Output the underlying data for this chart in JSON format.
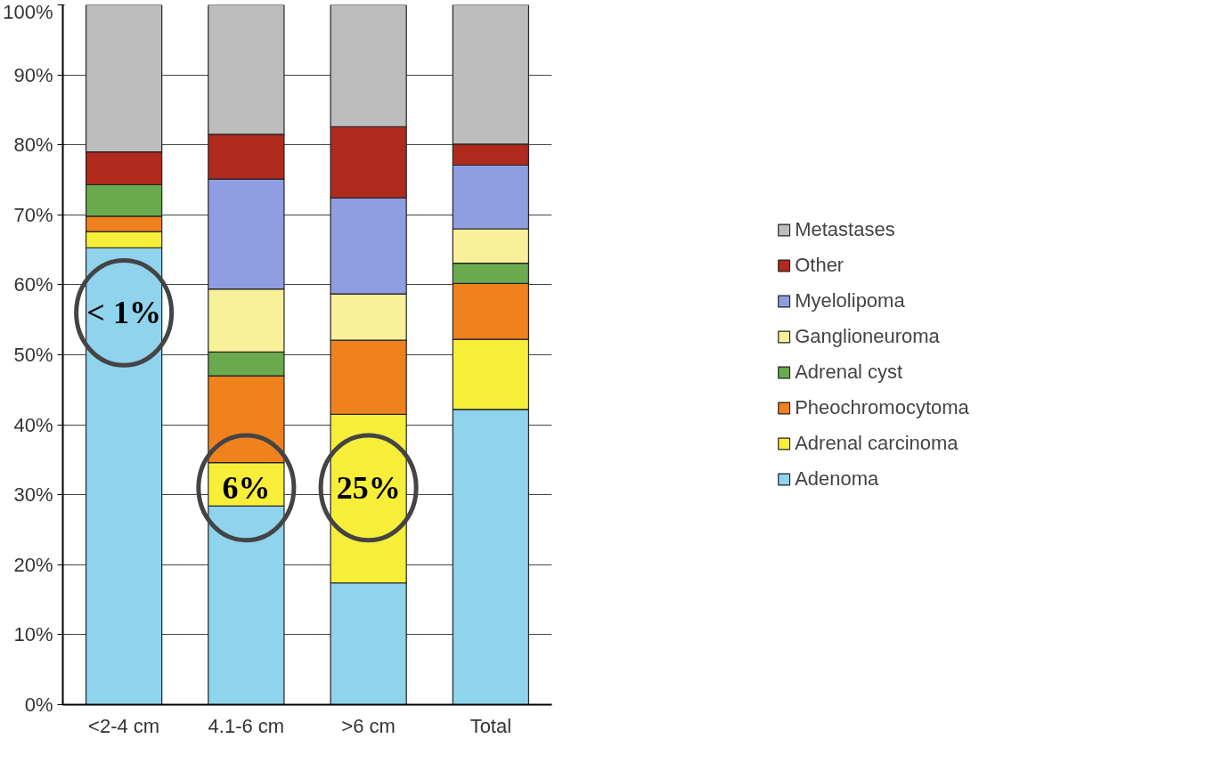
{
  "chart_data": {
    "type": "bar",
    "stacked": true,
    "categories": [
      "<2-4 cm",
      "4.1-6 cm",
      ">6 cm",
      "Total"
    ],
    "series": [
      {
        "name": "Adenoma",
        "color": "#8fd3ec",
        "values": [
          65.3,
          28.4,
          17.4,
          42.2
        ]
      },
      {
        "name": "Adrenal carcinoma",
        "color": "#f7ee3a",
        "values": [
          2.3,
          6.2,
          24.1,
          10.0
        ]
      },
      {
        "name": "Pheochromocytoma",
        "color": "#f0821e",
        "values": [
          2.2,
          12.4,
          10.6,
          8.0
        ]
      },
      {
        "name": "Adrenal cyst",
        "color": "#6aaa4e",
        "values": [
          4.5,
          3.4,
          0,
          2.9
        ]
      },
      {
        "name": "Ganglioneuroma",
        "color": "#f9f09a",
        "values": [
          0,
          9.0,
          6.6,
          4.9
        ]
      },
      {
        "name": "Myelolipoma",
        "color": "#8f9ee0",
        "values": [
          0,
          15.7,
          13.7,
          9.1
        ]
      },
      {
        "name": "Other",
        "color": "#b02a1e",
        "values": [
          4.7,
          6.4,
          10.2,
          3.0
        ]
      },
      {
        "name": "Metastases",
        "color": "#bdbdbd",
        "values": [
          21.0,
          18.5,
          17.4,
          19.9
        ]
      }
    ],
    "ylim": [
      0,
      100
    ],
    "yticks": [
      {
        "value": 0,
        "label": "0%"
      },
      {
        "value": 10,
        "label": "10%"
      },
      {
        "value": 20,
        "label": "20%"
      },
      {
        "value": 30,
        "label": "30%"
      },
      {
        "value": 40,
        "label": "40%"
      },
      {
        "value": 50,
        "label": "50%"
      },
      {
        "value": 60,
        "label": "60%"
      },
      {
        "value": 70,
        "label": "70%"
      },
      {
        "value": 80,
        "label": "80%"
      },
      {
        "value": 90,
        "label": "90%"
      },
      {
        "value": 100,
        "label": "100%"
      }
    ],
    "grid": "y",
    "legend": "right",
    "annotations": [
      "< 1%",
      "6%",
      "25%"
    ]
  }
}
